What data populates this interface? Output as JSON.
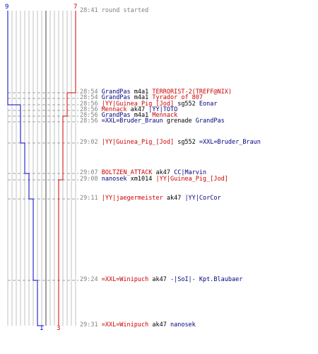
{
  "colors": {
    "blue": "#0000cc",
    "red": "#cc0000",
    "grid": "#c0c0c0",
    "center": "#808080",
    "time": "#808080"
  },
  "chart_data": {
    "type": "line",
    "start_counts": {
      "blue": "9",
      "red": "7"
    },
    "end_counts": {
      "blue": "1",
      "red": "3"
    },
    "series": [
      {
        "name": "",
        "team": "blue",
        "values": [
          9,
          9,
          8,
          7,
          6,
          5,
          4,
          3,
          2,
          1
        ]
      },
      {
        "name": "",
        "team": "red",
        "values": [
          7,
          7,
          6,
          5,
          4,
          3
        ]
      }
    ]
  },
  "events": [
    {
      "time": "28:41",
      "parts": [
        {
          "text": "round started",
          "c": "gray"
        }
      ]
    },
    {
      "time": "28:54",
      "parts": [
        {
          "text": "GrandPas",
          "c": "blue"
        },
        {
          "text": " m4a1 ",
          "c": "blk"
        },
        {
          "text": "TERRORIST-2(TREFF@NIX)",
          "c": "red"
        }
      ]
    },
    {
      "time": "28:54",
      "parts": [
        {
          "text": "GrandPas",
          "c": "blue"
        },
        {
          "text": " m4a1 ",
          "c": "blk"
        },
        {
          "text": "Tyrador of 807",
          "c": "red"
        }
      ]
    },
    {
      "time": "28:56",
      "parts": [
        {
          "text": "|YY|Guinea_Pig_[Jod]",
          "c": "red"
        },
        {
          "text": " sg552 ",
          "c": "blk"
        },
        {
          "text": "Eonar",
          "c": "blue"
        }
      ]
    },
    {
      "time": "28:56",
      "parts": [
        {
          "text": "Mennack",
          "c": "red"
        },
        {
          "text": " ak47 ",
          "c": "blk"
        },
        {
          "text": "|YY|TOTO",
          "c": "blue"
        }
      ]
    },
    {
      "time": "28:56",
      "parts": [
        {
          "text": "GrandPas",
          "c": "blue"
        },
        {
          "text": " m4a1 ",
          "c": "blk"
        },
        {
          "text": "Mennack",
          "c": "red"
        }
      ]
    },
    {
      "time": "28:56",
      "parts": [
        {
          "text": "=XXL=Bruder_Braun",
          "c": "blue"
        },
        {
          "text": " grenade ",
          "c": "blk"
        },
        {
          "text": "GrandPas",
          "c": "blue"
        }
      ]
    },
    {
      "time": "29:02",
      "parts": [
        {
          "text": "|YY|Guinea_Pig_[Jod]",
          "c": "red"
        },
        {
          "text": " sg552 ",
          "c": "blk"
        },
        {
          "text": "=XXL=Bruder_Braun",
          "c": "blue"
        }
      ]
    },
    {
      "time": "29:07",
      "parts": [
        {
          "text": "BOLTZEN_ATTACK",
          "c": "red"
        },
        {
          "text": " ak47 ",
          "c": "blk"
        },
        {
          "text": "CC|Marvin",
          "c": "blue"
        }
      ]
    },
    {
      "time": "29:08",
      "parts": [
        {
          "text": "nanosek",
          "c": "blue"
        },
        {
          "text": " xm1014 ",
          "c": "blk"
        },
        {
          "text": "|YY|Guinea_Pig_[Jod]",
          "c": "red"
        }
      ]
    },
    {
      "time": "29:11",
      "parts": [
        {
          "text": "|YY|jaegermeister",
          "c": "red"
        },
        {
          "text": " ak47 ",
          "c": "blk"
        },
        {
          "text": "|YY|CorCor",
          "c": "blue"
        }
      ]
    },
    {
      "time": "29:24",
      "parts": [
        {
          "text": "=XXL=Winipuch",
          "c": "red"
        },
        {
          "text": " ak47 ",
          "c": "blk"
        },
        {
          "text": "-|SoI|- Kpt.Blaubaer",
          "c": "blue"
        }
      ]
    },
    {
      "time": "29:31",
      "parts": [
        {
          "text": "=XXL=Winipuch",
          "c": "red"
        },
        {
          "text": " ak47 ",
          "c": "blk"
        },
        {
          "text": "nanosek",
          "c": "blue"
        }
      ]
    }
  ]
}
